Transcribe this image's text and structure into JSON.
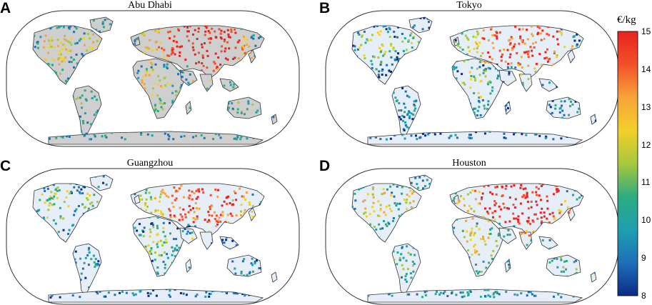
{
  "panels": [
    {
      "letter": "A",
      "city": "Abu Dhabi",
      "land_fill": "#cfcfcf"
    },
    {
      "letter": "B",
      "city": "Tokyo",
      "land_fill": "#e6eef8"
    },
    {
      "letter": "C",
      "city": "Guangzhou",
      "land_fill": "#e6eef8"
    },
    {
      "letter": "D",
      "city": "Houston",
      "land_fill": "#e6eef8"
    }
  ],
  "colorbar": {
    "unit": "€/kg",
    "min": 8,
    "max": 15,
    "ticks": [
      "8",
      "9",
      "10",
      "11",
      "12",
      "13",
      "14",
      "15"
    ],
    "colors": [
      "#0b2c87",
      "#1f6fb8",
      "#1e9fb0",
      "#2eab7f",
      "#a7c83d",
      "#f2d02a",
      "#f7a33a",
      "#f3502a",
      "#e8231f"
    ]
  }
}
